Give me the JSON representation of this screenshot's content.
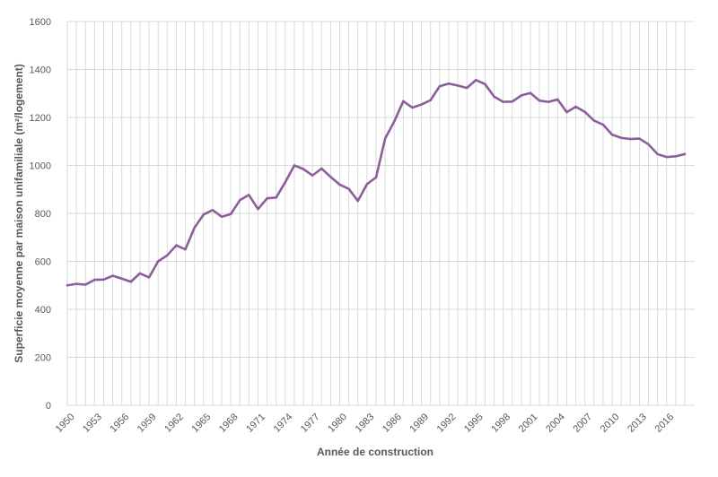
{
  "chart_data": {
    "type": "line",
    "title": "",
    "xlabel": "Année de construction",
    "ylabel": "Superficie moyenne par maison unifamiliale (m²/logement)",
    "ylim": [
      0,
      1600
    ],
    "yticks": [
      0,
      200,
      400,
      600,
      800,
      1000,
      1200,
      1400,
      1600
    ],
    "xlim": [
      1950,
      2018
    ],
    "xtick_labels": [
      "1950",
      "1953",
      "1956",
      "1959",
      "1962",
      "1965",
      "1968",
      "1971",
      "1974",
      "1977",
      "1980",
      "1983",
      "1986",
      "1989",
      "1992",
      "1995",
      "1998",
      "2001",
      "2004",
      "2007",
      "2010",
      "2013",
      "2016"
    ],
    "grid": true,
    "legend": "none",
    "line_color": "#8c5e9a",
    "x": [
      1950,
      1951,
      1952,
      1953,
      1954,
      1955,
      1956,
      1957,
      1958,
      1959,
      1960,
      1961,
      1962,
      1963,
      1964,
      1965,
      1966,
      1967,
      1968,
      1969,
      1970,
      1971,
      1972,
      1973,
      1974,
      1975,
      1976,
      1977,
      1978,
      1979,
      1980,
      1981,
      1982,
      1983,
      1984,
      1985,
      1986,
      1987,
      1988,
      1989,
      1990,
      1991,
      1992,
      1993,
      1994,
      1995,
      1996,
      1997,
      1998,
      1999,
      2000,
      2001,
      2002,
      2003,
      2004,
      2005,
      2006,
      2007,
      2008,
      2009,
      2010,
      2011,
      2012,
      2013,
      2014,
      2015,
      2016,
      2017,
      2018
    ],
    "series": [
      {
        "values": [
          500,
          506,
          503,
          523,
          524,
          540,
          528,
          515,
          550,
          533,
          600,
          625,
          667,
          650,
          740,
          795,
          814,
          786,
          797,
          855,
          877,
          818,
          863,
          866,
          930,
          1000,
          985,
          958,
          987,
          952,
          920,
          902,
          852,
          922,
          950,
          1112,
          1183,
          1268,
          1241,
          1254,
          1272,
          1330,
          1341,
          1333,
          1323,
          1356,
          1339,
          1287,
          1265,
          1266,
          1292,
          1302,
          1270,
          1265,
          1275,
          1222,
          1245,
          1223,
          1187,
          1170,
          1128,
          1115,
          1110,
          1112,
          1088,
          1047,
          1035,
          1038,
          1047
        ]
      }
    ]
  }
}
